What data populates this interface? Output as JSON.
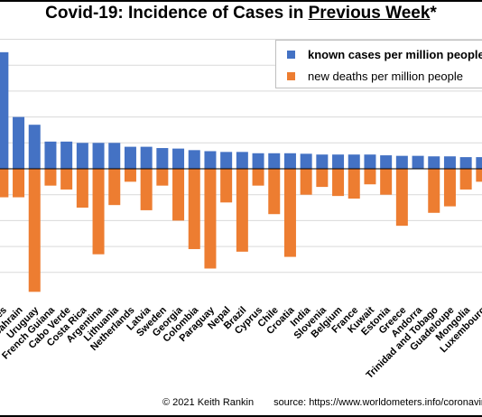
{
  "title": {
    "before": "Covid-19: Incidence of Cases in ",
    "underlined": "Previous Week",
    "after": "*"
  },
  "footer": {
    "credit": "© 2021  Keith  Rankin",
    "source": "source:  https://www.worldometers.info/coronavirus/"
  },
  "colors": {
    "cases": "#4472c4",
    "deaths": "#ed7d31",
    "grid": "#d9d9d9",
    "axis": "#000000"
  },
  "chart_data": {
    "type": "bar",
    "categories": [
      "Maldives",
      "Bahrain",
      "Uruguay",
      "French Guiana",
      "Cabo Verde",
      "Costa Rica",
      "Argentina",
      "Lithuania",
      "Netherlands",
      "Latvia",
      "Sweden",
      "Georgia",
      "Colombia",
      "Paraguay",
      "Nepal",
      "Brazil",
      "Cyprus",
      "Chile",
      "Croatia",
      "India",
      "Slovenia",
      "Belgium",
      "France",
      "Kuwait",
      "Estonia",
      "Greece",
      "Andorra",
      "Trinidad and Tobago",
      "Guadeloupe",
      "Mongolia",
      "Luxembourg"
    ],
    "series": [
      {
        "name": "known cases per million people",
        "color": "#4472c4",
        "values": [
          4.5,
          2.0,
          1.7,
          1.05,
          1.05,
          1.0,
          1.0,
          1.0,
          0.85,
          0.85,
          0.8,
          0.78,
          0.72,
          0.68,
          0.65,
          0.65,
          0.6,
          0.6,
          0.6,
          0.58,
          0.55,
          0.55,
          0.55,
          0.55,
          0.52,
          0.5,
          0.5,
          0.48,
          0.48,
          0.45,
          0.45
        ]
      },
      {
        "name": "new deaths per million people",
        "color": "#ed7d31",
        "values": [
          -1.1,
          -1.1,
          -4.75,
          -0.65,
          -0.8,
          -1.5,
          -3.3,
          -1.4,
          -0.5,
          -1.6,
          -0.65,
          -2.0,
          -3.1,
          -3.85,
          -1.3,
          -3.2,
          -0.65,
          -1.75,
          -3.4,
          -1.0,
          -0.7,
          -1.05,
          -1.15,
          -0.6,
          -1.0,
          -2.2,
          0,
          -1.7,
          -1.45,
          -0.8,
          -0.5
        ]
      }
    ],
    "ylim": [
      -5,
      5
    ],
    "grid": true,
    "legend": "top-right"
  }
}
